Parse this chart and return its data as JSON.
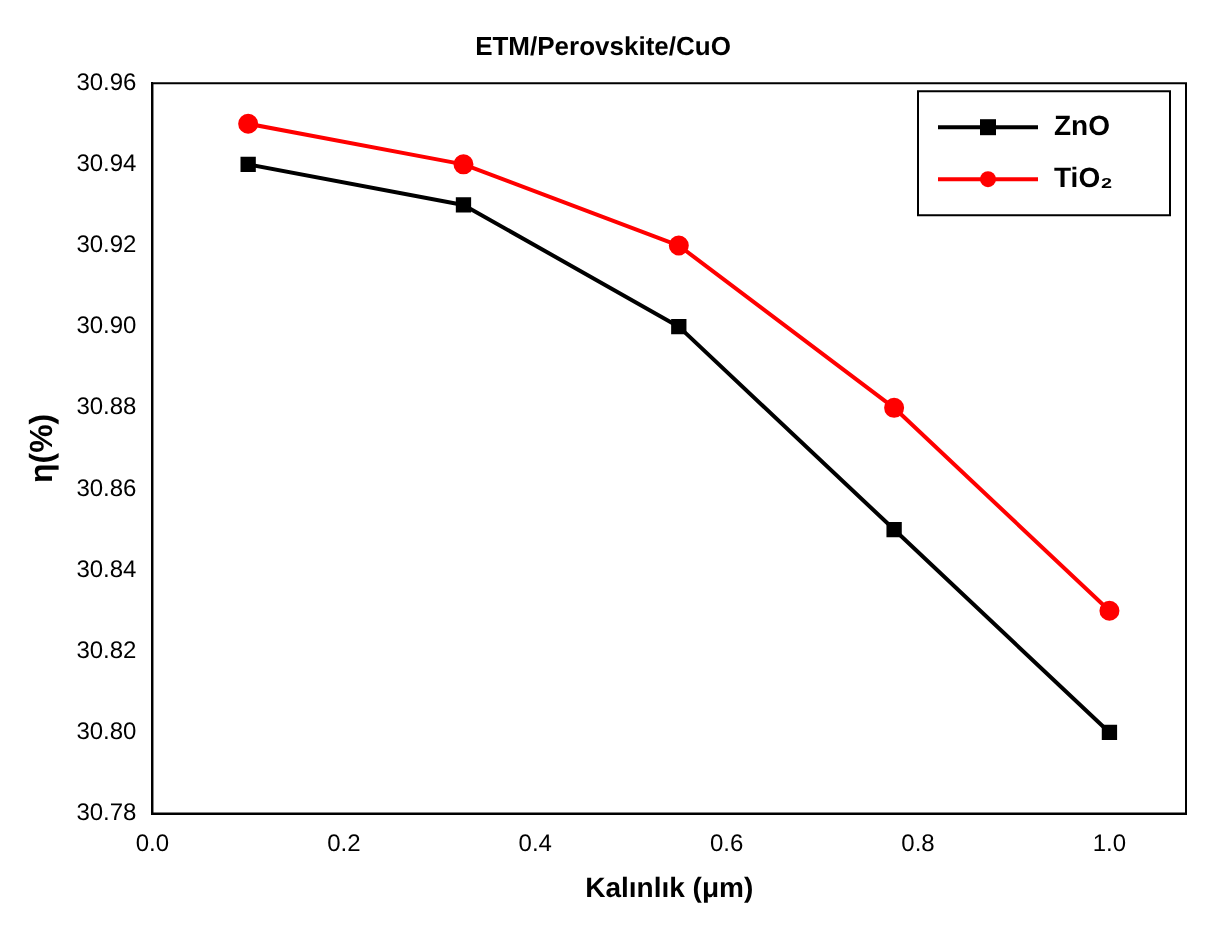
{
  "chart_data": {
    "type": "line",
    "title": "ETM/Perovskite/CuO",
    "xlabel": "Kalınlık (μm)",
    "ylabel": "η(%)",
    "x": [
      0.1,
      0.325,
      0.55,
      0.775,
      1.0
    ],
    "series": [
      {
        "name": "ZnO",
        "color": "#000000",
        "marker": "square",
        "values": [
          30.94,
          30.93,
          30.9,
          30.85,
          30.8
        ]
      },
      {
        "name": "TiO₂",
        "color": "#ff0000",
        "marker": "circle",
        "values": [
          30.95,
          30.94,
          30.92,
          30.88,
          30.83
        ]
      }
    ],
    "xlim": [
      0,
      1.08
    ],
    "xticks": [
      {
        "value": 0,
        "label": "0.0"
      },
      {
        "value": 0.2,
        "label": "0.2"
      },
      {
        "value": 0.4,
        "label": "0.4"
      },
      {
        "value": 0.6,
        "label": "0.6"
      },
      {
        "value": 0.8,
        "label": "0.8"
      },
      {
        "value": 1,
        "label": "1.0"
      }
    ],
    "ylim": [
      30.78,
      30.96
    ],
    "yticks": [
      {
        "value": 30.78,
        "label": "30.78"
      },
      {
        "value": 30.8,
        "label": "30.80"
      },
      {
        "value": 30.82,
        "label": "30.82"
      },
      {
        "value": 30.84,
        "label": "30.84"
      },
      {
        "value": 30.86,
        "label": "30.86"
      },
      {
        "value": 30.88,
        "label": "30.88"
      },
      {
        "value": 30.9,
        "label": "30.90"
      },
      {
        "value": 30.92,
        "label": "30.92"
      },
      {
        "value": 30.94,
        "label": "30.94"
      },
      {
        "value": 30.96,
        "label": "30.96"
      }
    ],
    "grid": false,
    "legend": "top right",
    "line_style": "solid"
  }
}
